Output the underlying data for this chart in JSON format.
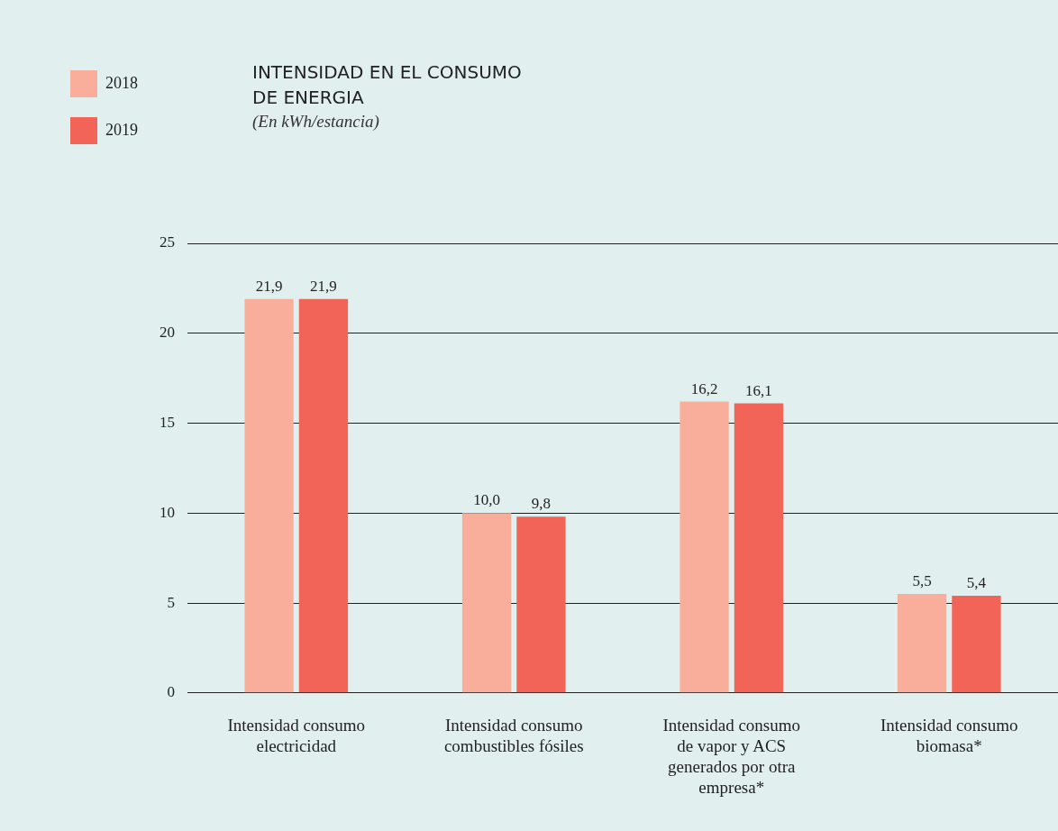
{
  "chart_data": {
    "type": "bar",
    "title": "INTENSIDAD EN EL CONSUMO DE ENERGIA",
    "subtitle": "(En kWh/estancia)",
    "categories": [
      "Intensidad consumo electricidad",
      "Intensidad consumo combustibles fósiles",
      "Intensidad consumo de vapor y ACS generados por otra empresa*",
      "Intensidad consumo biomasa*"
    ],
    "series": [
      {
        "name": "2018",
        "color": "#f9ae9b",
        "values": [
          21.9,
          10.0,
          16.2,
          5.5
        ],
        "value_labels": [
          "21,9",
          "10,0",
          "16,2",
          "5,5"
        ]
      },
      {
        "name": "2019",
        "color": "#f26457",
        "values": [
          21.9,
          9.8,
          16.1,
          5.4
        ],
        "value_labels": [
          "21,9",
          "9,8",
          "16,1",
          "5,4"
        ]
      }
    ],
    "ylim": [
      0,
      25
    ],
    "yticks": [
      0,
      5,
      10,
      15,
      20,
      25
    ],
    "grid": "y",
    "legend": "top left"
  }
}
